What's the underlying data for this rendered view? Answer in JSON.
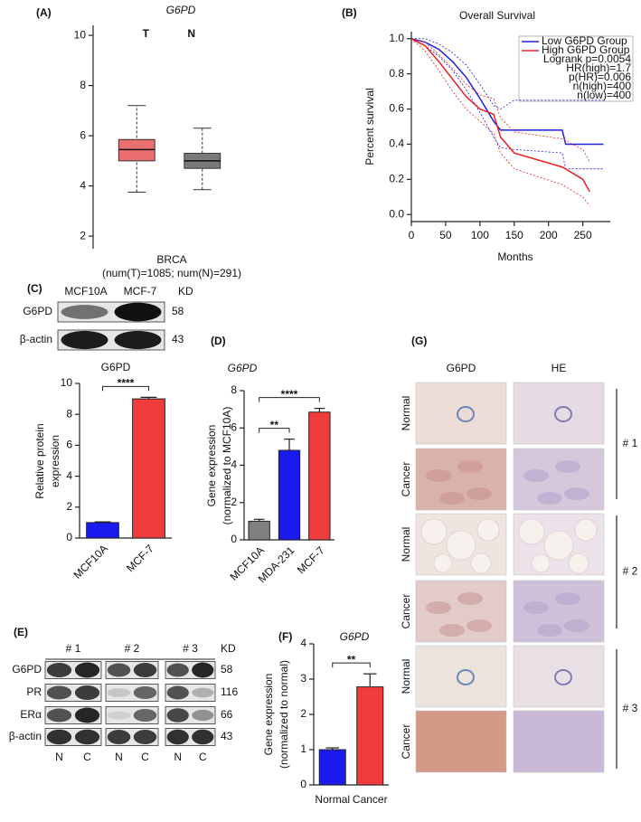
{
  "chart_data": [
    {
      "type": "box",
      "panel_label": "(A)",
      "title": "G6PD",
      "categories": [
        "T",
        "N"
      ],
      "whisker_low": [
        3.75,
        3.85
      ],
      "q1": [
        5.0,
        4.7
      ],
      "median": [
        5.45,
        5.0
      ],
      "q3": [
        5.85,
        5.3
      ],
      "whisker_high": [
        7.2,
        6.3
      ],
      "colors": [
        "#ec6f70",
        "#7a7a7a"
      ],
      "ylim": [
        1.5,
        10.4
      ],
      "yticks": [
        2,
        4,
        6,
        8,
        10
      ],
      "xlabel": "BRCA",
      "xlabel_note": "(num(T)=1085; num(N)=291)"
    },
    {
      "type": "line",
      "panel_label": "(B)",
      "title": "Overall Survival",
      "xlabel": "Months",
      "ylabel": "Percent survival",
      "xlim": [
        0,
        290
      ],
      "xticks": [
        0,
        50,
        100,
        150,
        200,
        250
      ],
      "ylim": [
        -0.04,
        1.04
      ],
      "yticks": [
        {
          "value": 0,
          "label": "0.0"
        },
        0.2,
        0.4,
        0.6,
        0.8,
        {
          "value": 1,
          "label": "1.0"
        }
      ],
      "series": [
        {
          "name": "Low G6PD Group",
          "color": "#1f1fe0",
          "x": [
            0,
            20,
            40,
            60,
            80,
            100,
            120,
            130,
            150,
            220,
            225,
            280
          ],
          "values": [
            1,
            0.98,
            0.94,
            0.87,
            0.78,
            0.66,
            0.53,
            0.48,
            0.48,
            0.48,
            0.4,
            0.4
          ],
          "ci_low": [
            1,
            0.96,
            0.9,
            0.82,
            0.71,
            0.58,
            0.44,
            0.38,
            0.37,
            0.35,
            0.26,
            0.26
          ],
          "ci_high": [
            1,
            1,
            0.97,
            0.92,
            0.85,
            0.74,
            0.62,
            0.6,
            0.65,
            0.65,
            0.65,
            0.65
          ]
        },
        {
          "name": "High G6PD Group",
          "color": "#e82020",
          "x": [
            0,
            20,
            40,
            60,
            80,
            100,
            120,
            130,
            150,
            220,
            250,
            260
          ],
          "values": [
            1,
            0.96,
            0.87,
            0.77,
            0.67,
            0.6,
            0.57,
            0.44,
            0.35,
            0.27,
            0.2,
            0.13
          ],
          "ci_low": [
            1,
            0.93,
            0.82,
            0.7,
            0.6,
            0.53,
            0.46,
            0.35,
            0.26,
            0.17,
            0.1,
            0.05
          ],
          "ci_high": [
            1,
            0.98,
            0.91,
            0.83,
            0.74,
            0.68,
            0.66,
            0.55,
            0.47,
            0.43,
            0.37,
            0.3
          ]
        }
      ],
      "annotations": [
        "Logrank p=0.0054",
        "HR(high)=1.7",
        "p(HR)=0.006",
        "n(high)=400",
        "n(low)=400"
      ]
    },
    {
      "type": "bar",
      "title": "G6PD",
      "ylabel": [
        "Relative protein",
        "expression"
      ],
      "categories": [
        "MCF10A",
        "MCF-7"
      ],
      "values": [
        1.0,
        9.0
      ],
      "errors": [
        0.05,
        0.1
      ],
      "colors": [
        "#1a1aee",
        "#f03c3c"
      ],
      "ylim": [
        0,
        10
      ],
      "yticks": [
        0,
        2,
        4,
        6,
        8,
        10
      ],
      "significance": [
        "****"
      ]
    },
    {
      "type": "bar",
      "panel_label": "(D)",
      "title": "G6PD",
      "ylabel": [
        "Gene expression",
        "(normalized to MCF10A)"
      ],
      "categories": [
        "MCF10A",
        "MDA-231",
        "MCF-7"
      ],
      "values": [
        1.0,
        4.8,
        6.85
      ],
      "errors": [
        0.1,
        0.6,
        0.2
      ],
      "colors": [
        "#808080",
        "#1a1aee",
        "#f03c3c"
      ],
      "ylim": [
        0,
        8
      ],
      "yticks": [
        0,
        2,
        4,
        6,
        8
      ],
      "significance": [
        "**",
        "****"
      ]
    },
    {
      "type": "bar",
      "panel_label": "(F)",
      "title": "G6PD",
      "ylabel": [
        "Gene expression",
        "(normalized to normal)"
      ],
      "categories": [
        "Normal",
        "Cancer"
      ],
      "values": [
        1.0,
        2.78
      ],
      "errors": [
        0.05,
        0.37
      ],
      "colors": [
        "#1a1aee",
        "#f03c3c"
      ],
      "ylim": [
        0,
        4
      ],
      "yticks": [
        0,
        1,
        2,
        3,
        4
      ],
      "significance": [
        "**"
      ]
    }
  ],
  "blots": [
    {
      "panel_label": "(C)",
      "lanes": [
        "MCF10A",
        "MCF-7"
      ],
      "unit": "KD",
      "rows": [
        {
          "name": "G6PD",
          "kd": 58
        },
        {
          "name": "β-actin",
          "kd": 43
        }
      ]
    },
    {
      "panel_label": "(E)",
      "groups": [
        "# 1",
        "# 2",
        "# 3"
      ],
      "lanes": [
        "N",
        "C",
        "N",
        "C",
        "N",
        "C"
      ],
      "unit": "KD",
      "rows": [
        {
          "name": "G6PD",
          "kd": 58
        },
        {
          "name": "PR",
          "kd": 116
        },
        {
          "name": "ERα",
          "kd": 66
        },
        {
          "name": "β-actin",
          "kd": 43
        }
      ]
    }
  ],
  "histology": {
    "panel_label": "(G)",
    "columns": [
      "G6PD",
      "HE"
    ],
    "rows": [
      "Normal",
      "Cancer",
      "Normal",
      "Cancer",
      "Normal",
      "Cancer"
    ],
    "cases": [
      "# 1",
      "# 2",
      "# 3"
    ]
  }
}
